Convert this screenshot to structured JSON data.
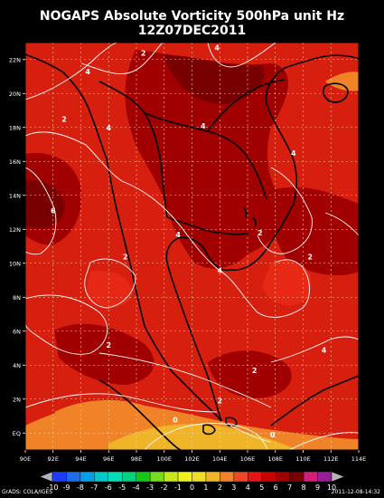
{
  "title": {
    "line1": "NOGAPS Absolute Vorticity 500hPa unit Hz",
    "line2": "12Z07DEC2011"
  },
  "axes": {
    "lat_labels": [
      "EQ",
      "2N",
      "4N",
      "6N",
      "8N",
      "10N",
      "12N",
      "14N",
      "16N",
      "18N",
      "20N",
      "22N"
    ],
    "lat_values": [
      0,
      2,
      4,
      6,
      8,
      10,
      12,
      14,
      16,
      18,
      20,
      22
    ],
    "lon_labels": [
      "90E",
      "92E",
      "94E",
      "96E",
      "98E",
      "100E",
      "102E",
      "104E",
      "106E",
      "108E",
      "110E",
      "112E",
      "114E"
    ],
    "lon_values": [
      90,
      92,
      94,
      96,
      98,
      100,
      102,
      104,
      106,
      108,
      110,
      112,
      114
    ],
    "lon_range": [
      90,
      114
    ],
    "lat_range": [
      -1,
      23
    ]
  },
  "contour_labels": [
    {
      "text": "2",
      "lon": 98.5,
      "lat": 22.4
    },
    {
      "text": "4",
      "lon": 103.8,
      "lat": 22.7
    },
    {
      "text": "4",
      "lon": 94.5,
      "lat": 21.3
    },
    {
      "text": "2",
      "lon": 92.8,
      "lat": 18.5
    },
    {
      "text": "4",
      "lon": 96.0,
      "lat": 18.0
    },
    {
      "text": "4",
      "lon": 102.8,
      "lat": 18.1
    },
    {
      "text": "4",
      "lon": 109.3,
      "lat": 16.5
    },
    {
      "text": "6",
      "lon": 92.0,
      "lat": 13.1
    },
    {
      "text": "4",
      "lon": 101.0,
      "lat": 11.7
    },
    {
      "text": "2",
      "lon": 106.9,
      "lat": 11.8
    },
    {
      "text": "2",
      "lon": 97.2,
      "lat": 10.4
    },
    {
      "text": "4",
      "lon": 104.0,
      "lat": 9.6
    },
    {
      "text": "2",
      "lon": 110.5,
      "lat": 10.4
    },
    {
      "text": "2",
      "lon": 96.0,
      "lat": 5.2
    },
    {
      "text": "4",
      "lon": 111.5,
      "lat": 4.9
    },
    {
      "text": "2",
      "lon": 106.5,
      "lat": 3.7
    },
    {
      "text": "2",
      "lon": 104.0,
      "lat": 1.9
    },
    {
      "text": "0",
      "lon": 100.8,
      "lat": 0.8
    },
    {
      "text": "0",
      "lon": 107.8,
      "lat": -0.1
    }
  ],
  "colorbar": {
    "labels": [
      "-10",
      "-9",
      "-8",
      "-7",
      "-6",
      "-5",
      "-4",
      "-3",
      "-2",
      "-1",
      "0",
      "1",
      "2",
      "3",
      "4",
      "5",
      "6",
      "7",
      "8",
      "9",
      "10"
    ],
    "colors": [
      "#1e3cff",
      "#1e6eeb",
      "#00a0e6",
      "#00c8c8",
      "#00dcb4",
      "#00d282",
      "#14c814",
      "#78dc1e",
      "#c8e61e",
      "#f0f01e",
      "#f0dc28",
      "#f0b428",
      "#f08228",
      "#f04628",
      "#e61414",
      "#c80000",
      "#a00000",
      "#780000",
      "#d21e78",
      "#961e96"
    ],
    "color_low": "#b4b4b4",
    "color_high": "#b4b4b4"
  },
  "footer": {
    "left": "GrADS: COLA/IGES",
    "right": "2011-12-08-14:32"
  },
  "palette": {
    "field_main": "#d61f0f",
    "field_dark": "#a00000",
    "field_darker": "#780000",
    "field_orange": "#f08228",
    "field_light_orange": "#f0b428",
    "coast": "#000000",
    "contour": "#ffffff",
    "grid": "#ffd2a0"
  }
}
